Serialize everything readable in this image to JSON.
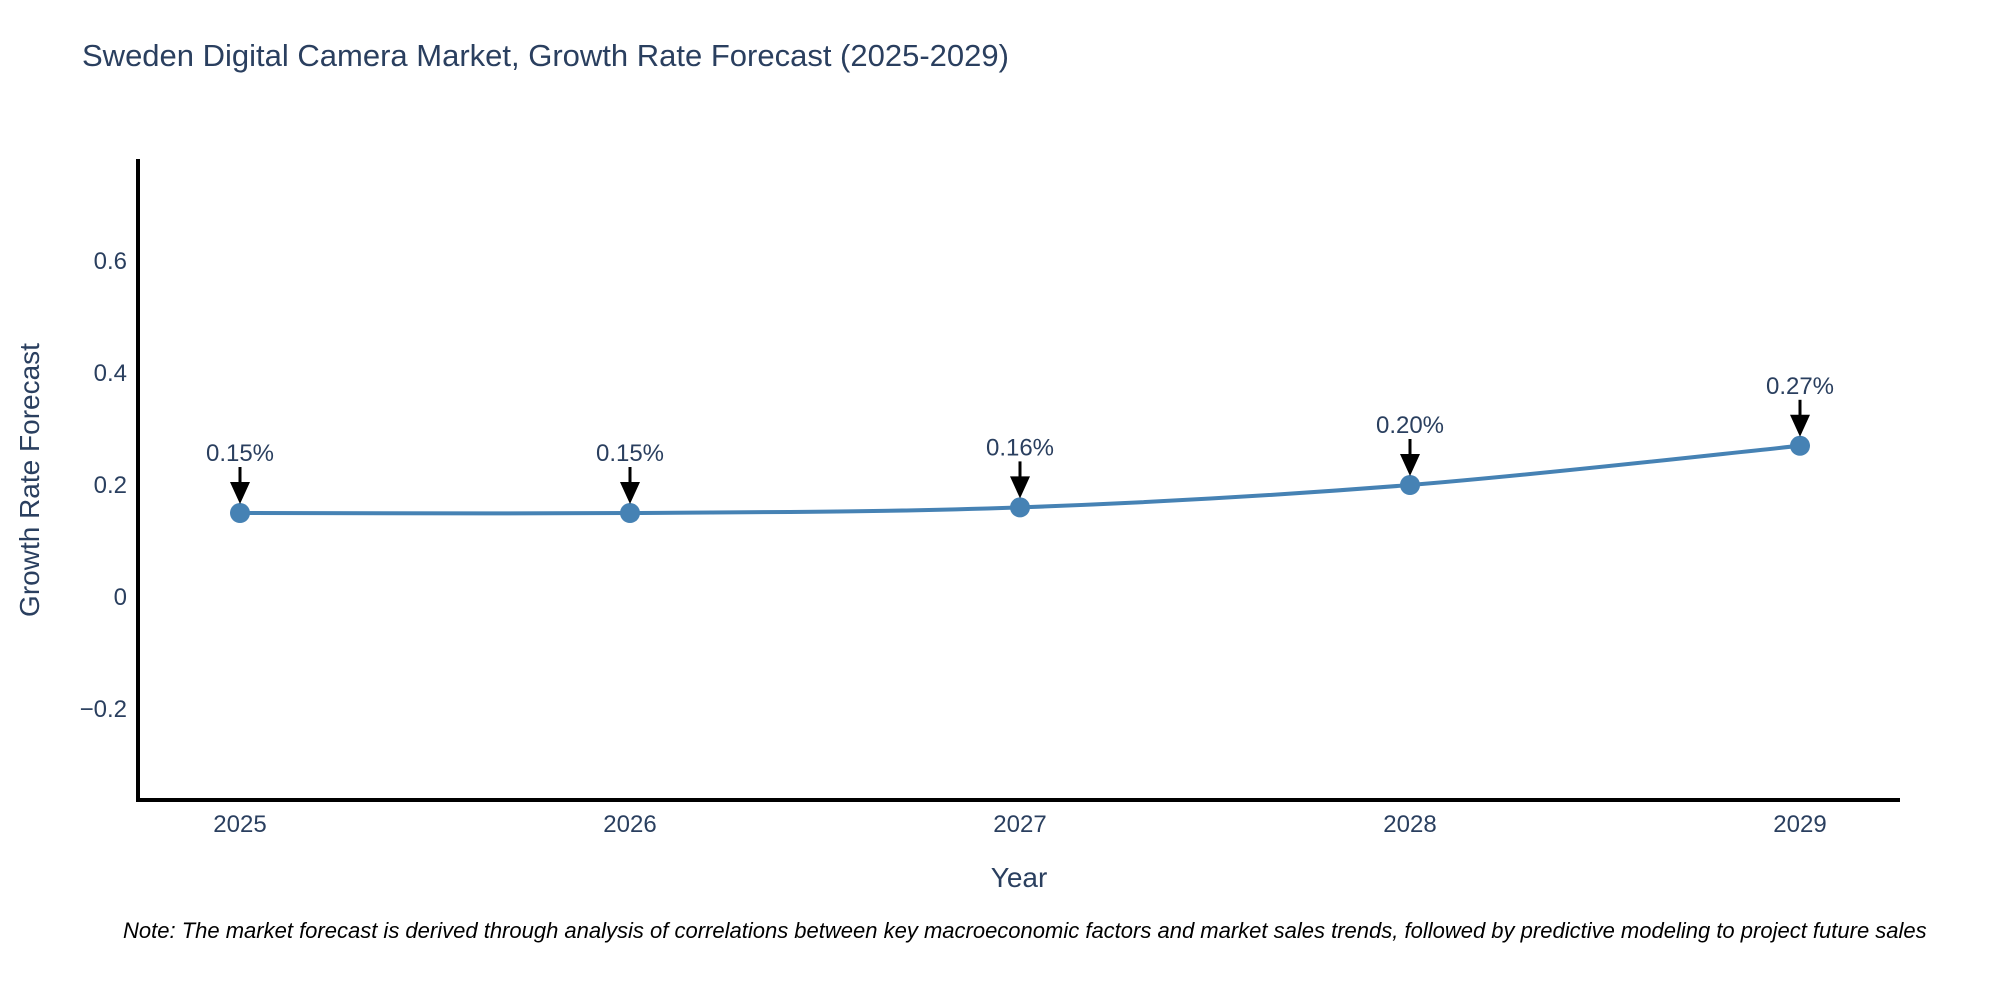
{
  "page": {
    "background": "#ffffff"
  },
  "header": {
    "title": "Sweden Digital Camera Market, Growth Rate Forecast (2025-2029)"
  },
  "footer": {
    "note": "Note: The market forecast is derived through analysis of correlations between key macroeconomic factors and market sales trends, followed by predictive modeling to project future sales"
  },
  "chart_data": {
    "type": "line",
    "title": "Sweden Digital Camera Market, Growth Rate Forecast (2025-2029)",
    "xlabel": "Year",
    "ylabel": "Growth Rate Forecast",
    "x": [
      2025,
      2026,
      2027,
      2028,
      2029
    ],
    "values": [
      0.15,
      0.15,
      0.16,
      0.2,
      0.27
    ],
    "point_labels": [
      "0.15%",
      "0.15%",
      "0.16%",
      "0.20%",
      "0.27%"
    ],
    "xticks": [
      "2025",
      "2026",
      "2027",
      "2028",
      "2029"
    ],
    "yticks": [
      -0.2,
      0,
      0.2,
      0.4,
      0.6
    ],
    "ylim": [
      -0.36,
      0.78
    ],
    "grid": false,
    "legend": false,
    "line_shape": "spline",
    "marker": "circle",
    "annotation_arrows": true,
    "colors": {
      "line": "#4682b4",
      "marker": "#4682b4",
      "axis_line": "#000000",
      "tick_text": "#2a3f5f",
      "annotation_text": "#2a3f5f",
      "arrow": "#000000",
      "title_text": "#2a3f5f",
      "note_text": "#000000"
    }
  }
}
